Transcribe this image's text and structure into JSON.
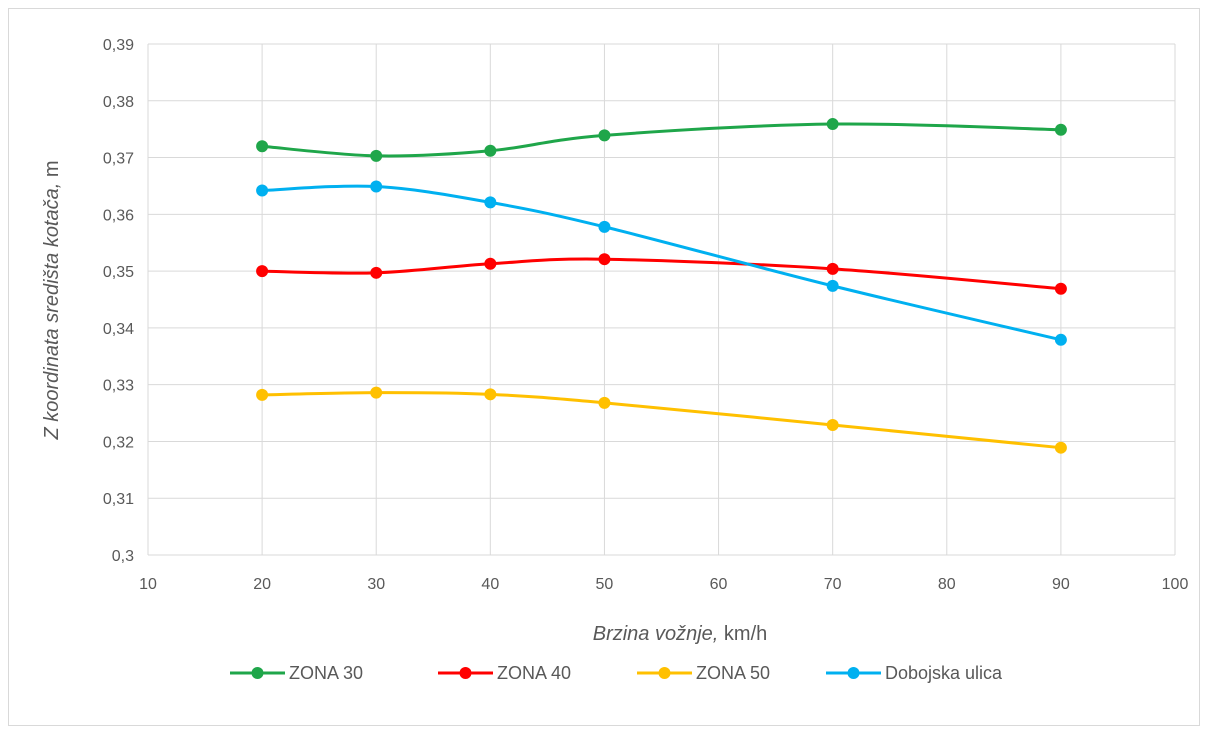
{
  "chart_data": {
    "type": "line",
    "title": "",
    "xlabel_italic": "Brzina vožnje,",
    "xlabel_unit": " km/h",
    "ylabel_italic": "Z koordinata središta kotača,",
    "ylabel_unit": " m",
    "xlim": [
      10,
      100
    ],
    "ylim": [
      0.3,
      0.39
    ],
    "x_ticks": [
      "10",
      "20",
      "30",
      "40",
      "50",
      "60",
      "70",
      "80",
      "90",
      "100"
    ],
    "x_tick_values": [
      10,
      20,
      30,
      40,
      50,
      60,
      70,
      80,
      90,
      100
    ],
    "y_ticks": [
      "0,3",
      "0,31",
      "0,32",
      "0,33",
      "0,34",
      "0,35",
      "0,36",
      "0,37",
      "0,38",
      "0,39"
    ],
    "y_tick_values": [
      0.3,
      0.31,
      0.32,
      0.33,
      0.34,
      0.35,
      0.36,
      0.37,
      0.38,
      0.39
    ],
    "grid": true,
    "legend_position": "bottom",
    "x": [
      20,
      30,
      40,
      50,
      70,
      90
    ],
    "series": [
      {
        "name": "ZONA 30",
        "color": "#1fa64a",
        "values": [
          0.372,
          0.3703,
          0.3712,
          0.3739,
          0.3759,
          0.3749
        ]
      },
      {
        "name": "ZONA 40",
        "color": "#ff0000",
        "values": [
          0.35,
          0.3497,
          0.3513,
          0.3521,
          0.3504,
          0.3469
        ]
      },
      {
        "name": "ZONA 50",
        "color": "#ffc000",
        "values": [
          0.3282,
          0.3286,
          0.3283,
          0.3268,
          0.3229,
          0.3189
        ]
      },
      {
        "name": "Dobojska ulica",
        "color": "#00b0f0",
        "values": [
          0.3642,
          0.3649,
          0.3621,
          0.3578,
          0.3474,
          0.3379
        ]
      }
    ]
  }
}
